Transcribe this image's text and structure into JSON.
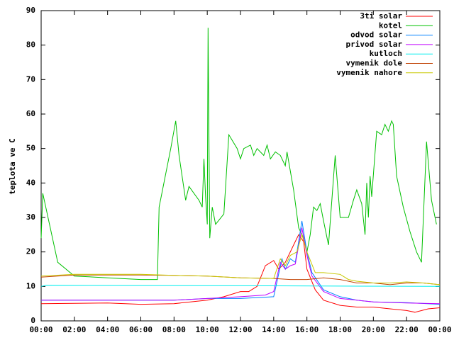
{
  "chart_data": {
    "type": "line",
    "ylabel": "teplota ve C",
    "xlim": [
      0,
      24
    ],
    "ylim": [
      0,
      90
    ],
    "xticks": [
      {
        "value": 0,
        "label": "00:00"
      },
      {
        "value": 2,
        "label": "02:00"
      },
      {
        "value": 4,
        "label": "04:00"
      },
      {
        "value": 6,
        "label": "06:00"
      },
      {
        "value": 8,
        "label": "08:00"
      },
      {
        "value": 10,
        "label": "10:00"
      },
      {
        "value": 12,
        "label": "12:00"
      },
      {
        "value": 14,
        "label": "14:00"
      },
      {
        "value": 16,
        "label": "16:00"
      },
      {
        "value": 18,
        "label": "18:00"
      },
      {
        "value": 20,
        "label": "20:00"
      },
      {
        "value": 22,
        "label": "22:00"
      },
      {
        "value": 24,
        "label": "00:00"
      }
    ],
    "yticks": [
      0,
      10,
      20,
      30,
      40,
      50,
      60,
      70,
      80,
      90
    ],
    "legend": "top right",
    "grid": false,
    "series": [
      {
        "name": "3ti solar",
        "color": "#ff0000",
        "x": [
          0,
          4,
          6,
          8,
          10,
          11,
          12,
          12.5,
          13,
          13.5,
          14,
          14.3,
          14.7,
          15.2,
          15.5,
          15.8,
          16,
          16.5,
          17,
          18,
          19,
          20,
          21,
          22,
          22.5,
          23.3,
          24
        ],
        "values": [
          5,
          5.2,
          4.8,
          5,
          6,
          7,
          8.5,
          8.5,
          10,
          16,
          17.5,
          15,
          17,
          22,
          25,
          23,
          15,
          9,
          6,
          4.5,
          4,
          4,
          3.5,
          3,
          2.5,
          3.5,
          3.8
        ]
      },
      {
        "name": "kotel",
        "color": "#00c000",
        "x": [
          0,
          0.1,
          1,
          2,
          4,
          6,
          7,
          7.1,
          7.8,
          8.1,
          8.3,
          8.7,
          8.9,
          9.5,
          9.7,
          9.8,
          9.9,
          10,
          10.05,
          10.15,
          10.3,
          10.5,
          11,
          11.3,
          11.8,
          12,
          12.2,
          12.6,
          12.8,
          13,
          13.4,
          13.6,
          13.8,
          14.1,
          14.4,
          14.7,
          14.8,
          15.2,
          15.5,
          15.8,
          16,
          16.2,
          16.4,
          16.6,
          16.8,
          17,
          17.3,
          17.7,
          18,
          18.5,
          18.8,
          19,
          19.3,
          19.5,
          19.6,
          19.7,
          19.8,
          19.9,
          20.2,
          20.5,
          20.7,
          20.9,
          21.1,
          21.2,
          21.4,
          21.8,
          22.2,
          22.6,
          22.9,
          23.2,
          23.5,
          23.8
        ],
        "values": [
          24,
          37,
          17,
          13,
          12.5,
          12,
          12,
          33,
          50,
          58,
          48,
          35,
          39,
          35,
          33,
          47,
          36,
          28,
          85,
          24,
          33,
          28,
          31,
          54,
          50,
          47,
          50,
          51,
          48,
          50,
          48,
          51,
          47,
          49,
          48,
          45,
          49,
          38,
          27,
          24,
          20,
          25,
          33,
          32,
          34,
          29,
          22,
          48,
          30,
          30,
          35,
          38,
          34,
          25,
          40,
          30,
          42,
          36,
          55,
          54,
          57,
          55,
          58,
          57,
          42,
          33,
          26,
          20,
          17,
          52,
          35,
          28
        ]
      },
      {
        "name": "odvod solar",
        "color": "#0080ff",
        "x": [
          0,
          6,
          8,
          10,
          12,
          14,
          14.5,
          14.7,
          15,
          15.3,
          15.7,
          16,
          16.3,
          17,
          18,
          19,
          20,
          22,
          24
        ],
        "values": [
          6,
          6,
          6,
          6.5,
          6.5,
          7,
          18,
          15,
          18,
          17,
          29,
          20,
          14,
          9,
          7,
          6,
          5.5,
          5.3,
          4.8
        ]
      },
      {
        "name": "privod solar",
        "color": "#c000ff",
        "x": [
          0,
          8,
          10,
          12,
          13.5,
          14,
          14.4,
          14.7,
          15,
          15.3,
          15.7,
          16,
          16.3,
          17,
          18,
          19,
          20,
          22,
          24
        ],
        "values": [
          6,
          6,
          6.5,
          7,
          7.5,
          8.5,
          17,
          15,
          16,
          16.5,
          27,
          19,
          13,
          8.5,
          6.5,
          6,
          5.5,
          5.2,
          5
        ]
      },
      {
        "name": "kutloch",
        "color": "#00eeee",
        "x": [
          0,
          0.3,
          12,
          24
        ],
        "values": [
          10,
          10.3,
          10.2,
          10
        ]
      },
      {
        "name": "vymenik dole",
        "color": "#c04000",
        "x": [
          0,
          2,
          6,
          8,
          10,
          12,
          14,
          15,
          16,
          17,
          18,
          19,
          20,
          21,
          22,
          23,
          24
        ],
        "values": [
          12.7,
          13.3,
          13.3,
          13.2,
          13,
          12.5,
          12.3,
          12,
          12,
          12.5,
          12,
          11,
          11,
          10.5,
          11,
          11,
          10.5
        ]
      },
      {
        "name": "vymenik nahore",
        "color": "#c8c800",
        "x": [
          0,
          2,
          6,
          8,
          10,
          12,
          14,
          14.4,
          14.7,
          15,
          15.4,
          15.7,
          16,
          16.5,
          17,
          18,
          18.5,
          19,
          20,
          21,
          22,
          23,
          24
        ],
        "values": [
          13,
          13.5,
          13.5,
          13.2,
          13,
          12.5,
          12.3,
          18,
          16,
          19,
          20,
          25,
          20,
          14,
          14,
          13.5,
          12,
          11.5,
          11,
          11,
          11.3,
          11,
          10.5
        ]
      }
    ]
  }
}
